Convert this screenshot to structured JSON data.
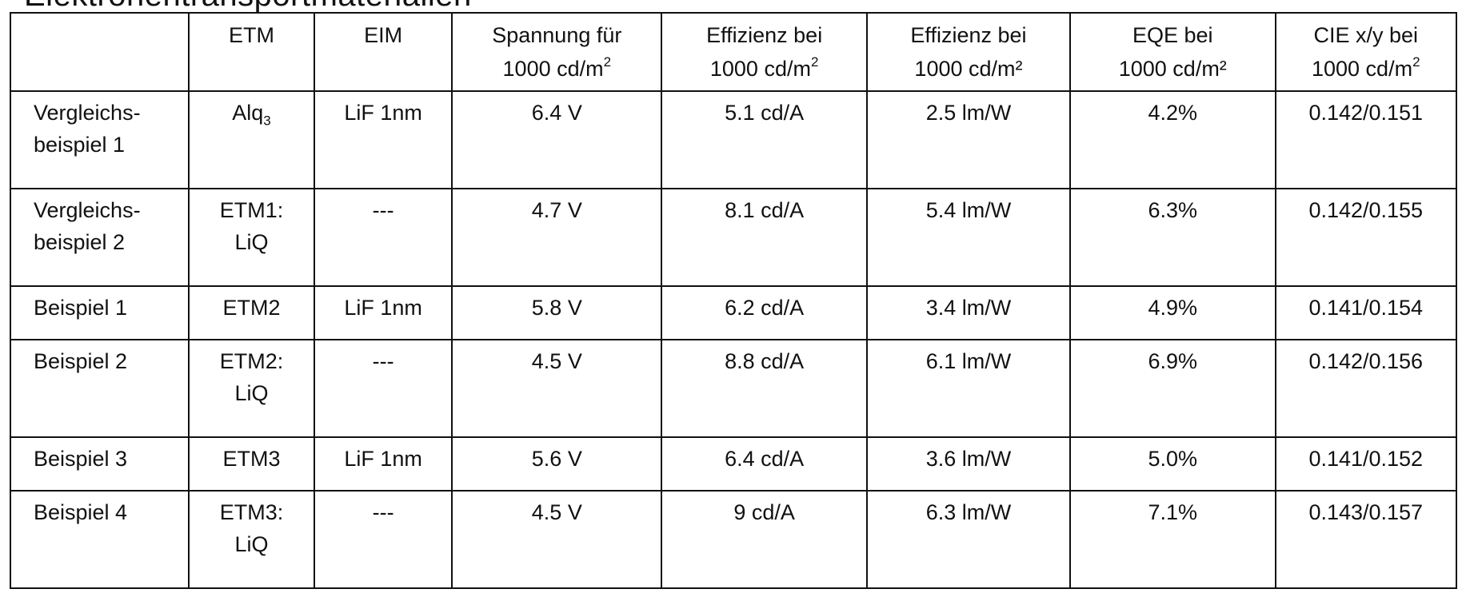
{
  "heading": "Elektronentransportmaterialien",
  "columns": [
    {
      "l1": "",
      "l2": ""
    },
    {
      "l1": "ETM",
      "l2": ""
    },
    {
      "l1": "EIM",
      "l2": ""
    },
    {
      "l1": "Spannung für",
      "l2": "1000 cd/m",
      "sup": "2"
    },
    {
      "l1": "Effizienz bei",
      "l2": "1000 cd/m",
      "sup": "2"
    },
    {
      "l1": "Effizienz bei",
      "l2": "1000 cd/m²"
    },
    {
      "l1": "EQE bei",
      "l2": "1000 cd/m²"
    },
    {
      "l1": "CIE x/y bei",
      "l2": "1000 cd/m",
      "sup": "2"
    }
  ],
  "rows": [
    {
      "name_l1": "Vergleichs-",
      "name_l2": "beispiel 1",
      "etm_l1": "Alq",
      "etm_sub": "3",
      "etm_l2": "",
      "eim": "LiF 1nm",
      "spannung": "6.4 V",
      "eff_cd": "5.1 cd/A",
      "eff_lm": "2.5 lm/W",
      "eqe": "4.2%",
      "cie": "0.142/0.151"
    },
    {
      "name_l1": "Vergleichs-",
      "name_l2": "beispiel 2",
      "etm_l1": "ETM1:",
      "etm_sub": "",
      "etm_l2": "LiQ",
      "eim": "---",
      "spannung": "4.7 V",
      "eff_cd": "8.1 cd/A",
      "eff_lm": "5.4 lm/W",
      "eqe": "6.3%",
      "cie": "0.142/0.155"
    },
    {
      "name_l1": "Beispiel 1",
      "name_l2": "",
      "etm_l1": "ETM2",
      "etm_sub": "",
      "etm_l2": "",
      "eim": "LiF 1nm",
      "spannung": "5.8 V",
      "eff_cd": "6.2 cd/A",
      "eff_lm": "3.4 lm/W",
      "eqe": "4.9%",
      "cie": "0.141/0.154"
    },
    {
      "name_l1": "Beispiel 2",
      "name_l2": "",
      "etm_l1": "ETM2:",
      "etm_sub": "",
      "etm_l2": "LiQ",
      "eim": "---",
      "spannung": "4.5 V",
      "eff_cd": "8.8 cd/A",
      "eff_lm": "6.1 lm/W",
      "eqe": "6.9%",
      "cie": "0.142/0.156"
    },
    {
      "name_l1": "Beispiel 3",
      "name_l2": "",
      "etm_l1": "ETM3",
      "etm_sub": "",
      "etm_l2": "",
      "eim": "LiF 1nm",
      "spannung": "5.6 V",
      "eff_cd": "6.4 cd/A",
      "eff_lm": "3.6 lm/W",
      "eqe": "5.0%",
      "cie": "0.141/0.152"
    },
    {
      "name_l1": "Beispiel 4",
      "name_l2": "",
      "etm_l1": "ETM3:",
      "etm_sub": "",
      "etm_l2": "LiQ",
      "eim": "---",
      "spannung": "4.5 V",
      "eff_cd": "9 cd/A",
      "eff_lm": "6.3 lm/W",
      "eqe": "7.1%",
      "cie": "0.143/0.157"
    }
  ]
}
